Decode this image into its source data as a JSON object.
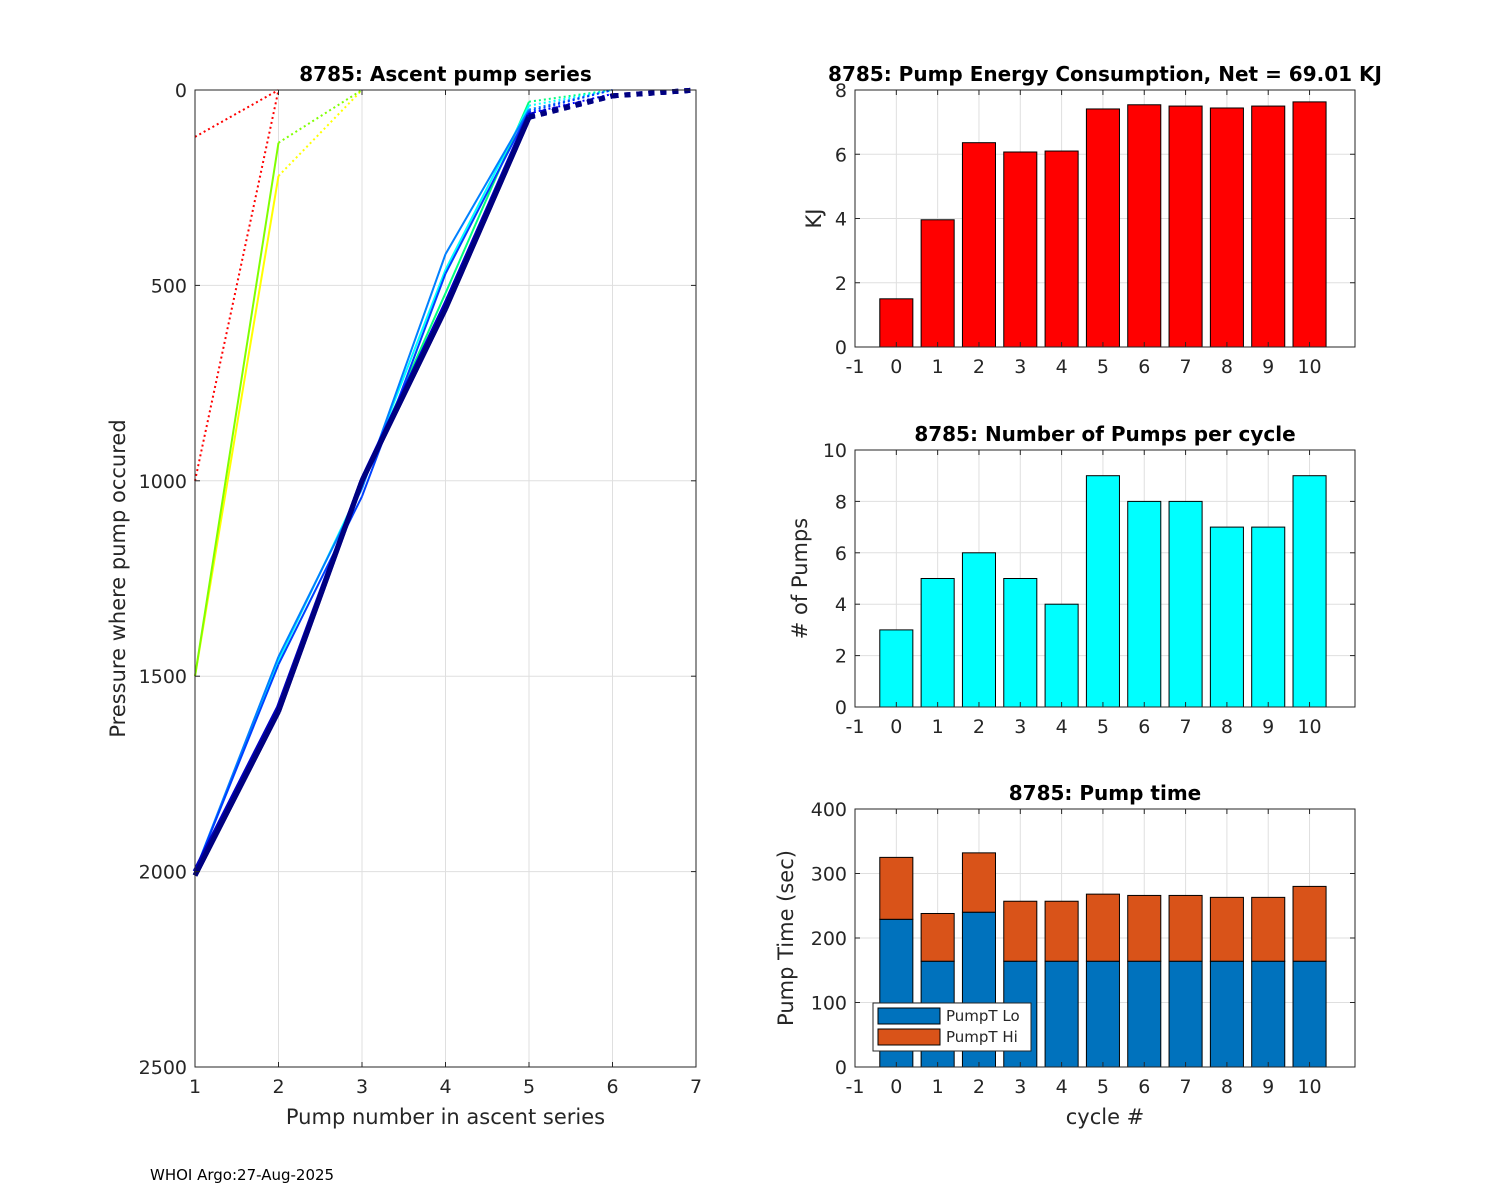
{
  "footer": "WHOI Argo:27-Aug-2025",
  "chart_data": [
    {
      "id": "ascent",
      "type": "line",
      "title": "8785: Ascent pump series",
      "xlabel": "Pump number in ascent series",
      "ylabel": "Pressure where pump occured",
      "xlim": [
        1,
        7
      ],
      "ylim": [
        0,
        2500
      ],
      "y_reversed": true,
      "xticks": [
        1,
        2,
        3,
        4,
        5,
        6,
        7
      ],
      "yticks": [
        0,
        500,
        1000,
        1500,
        2000,
        2500
      ],
      "grid": true,
      "series": [
        {
          "name": "cycle 0",
          "color": "#ff0000",
          "x": [
            1,
            2
          ],
          "y": [
            1000,
            0
          ],
          "x_dotted_from": 1
        },
        {
          "name": "cycle 0b",
          "color": "#ff0000",
          "x": [
            1,
            2
          ],
          "y": [
            120,
            0
          ],
          "x_dotted_from": 1
        },
        {
          "name": "cycle 1",
          "color": "#ffff00",
          "x": [
            1,
            2,
            3
          ],
          "y": [
            1500,
            220,
            0
          ],
          "x_dotted_from": 2
        },
        {
          "name": "cycle 2",
          "color": "#80ff00",
          "x": [
            1,
            2,
            3
          ],
          "y": [
            1500,
            135,
            0
          ],
          "x_dotted_from": 2
        },
        {
          "name": "cycle 3",
          "color": "#00ff80",
          "x": [
            1,
            2,
            3,
            4,
            5,
            6
          ],
          "y": [
            2000,
            1580,
            1000,
            520,
            30,
            0
          ],
          "x_dotted_from": 5
        },
        {
          "name": "cycle 4",
          "color": "#00ffff",
          "x": [
            1,
            2,
            3,
            4,
            5,
            6
          ],
          "y": [
            2000,
            1460,
            1010,
            460,
            40,
            0
          ],
          "x_dotted_from": 5
        },
        {
          "name": "cycle 5",
          "color": "#0080ff",
          "x": [
            1,
            2,
            3,
            4,
            5,
            6
          ],
          "y": [
            2000,
            1450,
            1020,
            420,
            50,
            0
          ],
          "x_dotted_from": 5
        },
        {
          "name": "cycle 6",
          "color": "#0040ff",
          "x": [
            1,
            2,
            3,
            4,
            5,
            6
          ],
          "y": [
            2000,
            1470,
            1040,
            470,
            55,
            0
          ],
          "x_dotted_from": 5
        },
        {
          "name": "cycle 7",
          "color": "#0000ff",
          "x": [
            1,
            2,
            3,
            4,
            5,
            6
          ],
          "y": [
            2000,
            1580,
            990,
            540,
            60,
            10
          ],
          "x_dotted_from": 5
        },
        {
          "name": "cycle 8",
          "color": "#0000c0",
          "x": [
            1,
            2,
            3,
            4,
            5,
            6,
            7
          ],
          "y": [
            2000,
            1580,
            1000,
            550,
            65,
            15,
            0
          ],
          "x_dotted_from": 5
        },
        {
          "name": "cycle 9",
          "color": "#000090",
          "x": [
            1,
            2,
            3,
            4,
            5,
            6,
            7
          ],
          "y": [
            2010,
            1590,
            1000,
            560,
            70,
            15,
            0
          ],
          "x_dotted_from": 5
        },
        {
          "name": "cycle 10",
          "color": "#000080",
          "x": [
            1,
            2,
            3,
            4,
            5,
            6,
            7
          ],
          "y": [
            2010,
            1590,
            1000,
            560,
            70,
            15,
            0
          ],
          "x_dotted_from": 5
        }
      ]
    },
    {
      "id": "energy",
      "type": "bar",
      "title": "8785: Pump Energy Consumption,  Net =  69.01 KJ",
      "xlabel": "",
      "ylabel": "KJ",
      "categories": [
        0,
        1,
        2,
        3,
        4,
        5,
        6,
        7,
        8,
        9,
        10
      ],
      "values": [
        1.5,
        3.96,
        6.36,
        6.07,
        6.1,
        7.41,
        7.54,
        7.5,
        7.44,
        7.5,
        7.63
      ],
      "color": "#ff0000",
      "xlim": [
        -1,
        12
      ],
      "ylim": [
        0,
        8
      ],
      "xticks": [
        -1,
        0,
        1,
        2,
        3,
        4,
        5,
        6,
        7,
        8,
        9,
        10
      ],
      "yticks": [
        0,
        2,
        4,
        6,
        8
      ],
      "grid": true
    },
    {
      "id": "npumps",
      "type": "bar",
      "title": "8785: Number of Pumps per cycle",
      "xlabel": "",
      "ylabel": "# of Pumps",
      "categories": [
        0,
        1,
        2,
        3,
        4,
        5,
        6,
        7,
        8,
        9,
        10
      ],
      "values": [
        3,
        5,
        6,
        5,
        4,
        9,
        8,
        8,
        7,
        7,
        9
      ],
      "color": "#00ffff",
      "xlim": [
        -1,
        12
      ],
      "ylim": [
        0,
        10
      ],
      "xticks": [
        -1,
        0,
        1,
        2,
        3,
        4,
        5,
        6,
        7,
        8,
        9,
        10
      ],
      "yticks": [
        0,
        2,
        4,
        6,
        8,
        10
      ],
      "grid": true
    },
    {
      "id": "pumptime",
      "type": "bar",
      "stacked": true,
      "title": "8785: Pump time",
      "xlabel": "cycle #",
      "ylabel": "Pump Time (sec)",
      "categories": [
        0,
        1,
        2,
        3,
        4,
        5,
        6,
        7,
        8,
        9,
        10
      ],
      "series": [
        {
          "name": "PumpT Lo",
          "color": "#0072bd",
          "values": [
            229,
            164,
            240,
            164,
            164,
            164,
            164,
            164,
            164,
            164,
            164
          ]
        },
        {
          "name": "PumpT Hi",
          "color": "#d95319",
          "values": [
            96,
            74,
            92,
            93,
            93,
            104,
            102,
            102,
            99,
            99,
            116
          ]
        }
      ],
      "legend": "bottom-left",
      "xlim": [
        -1,
        12
      ],
      "ylim": [
        0,
        400
      ],
      "xticks": [
        -1,
        0,
        1,
        2,
        3,
        4,
        5,
        6,
        7,
        8,
        9,
        10
      ],
      "yticks": [
        0,
        100,
        200,
        300,
        400
      ],
      "grid": true
    }
  ]
}
